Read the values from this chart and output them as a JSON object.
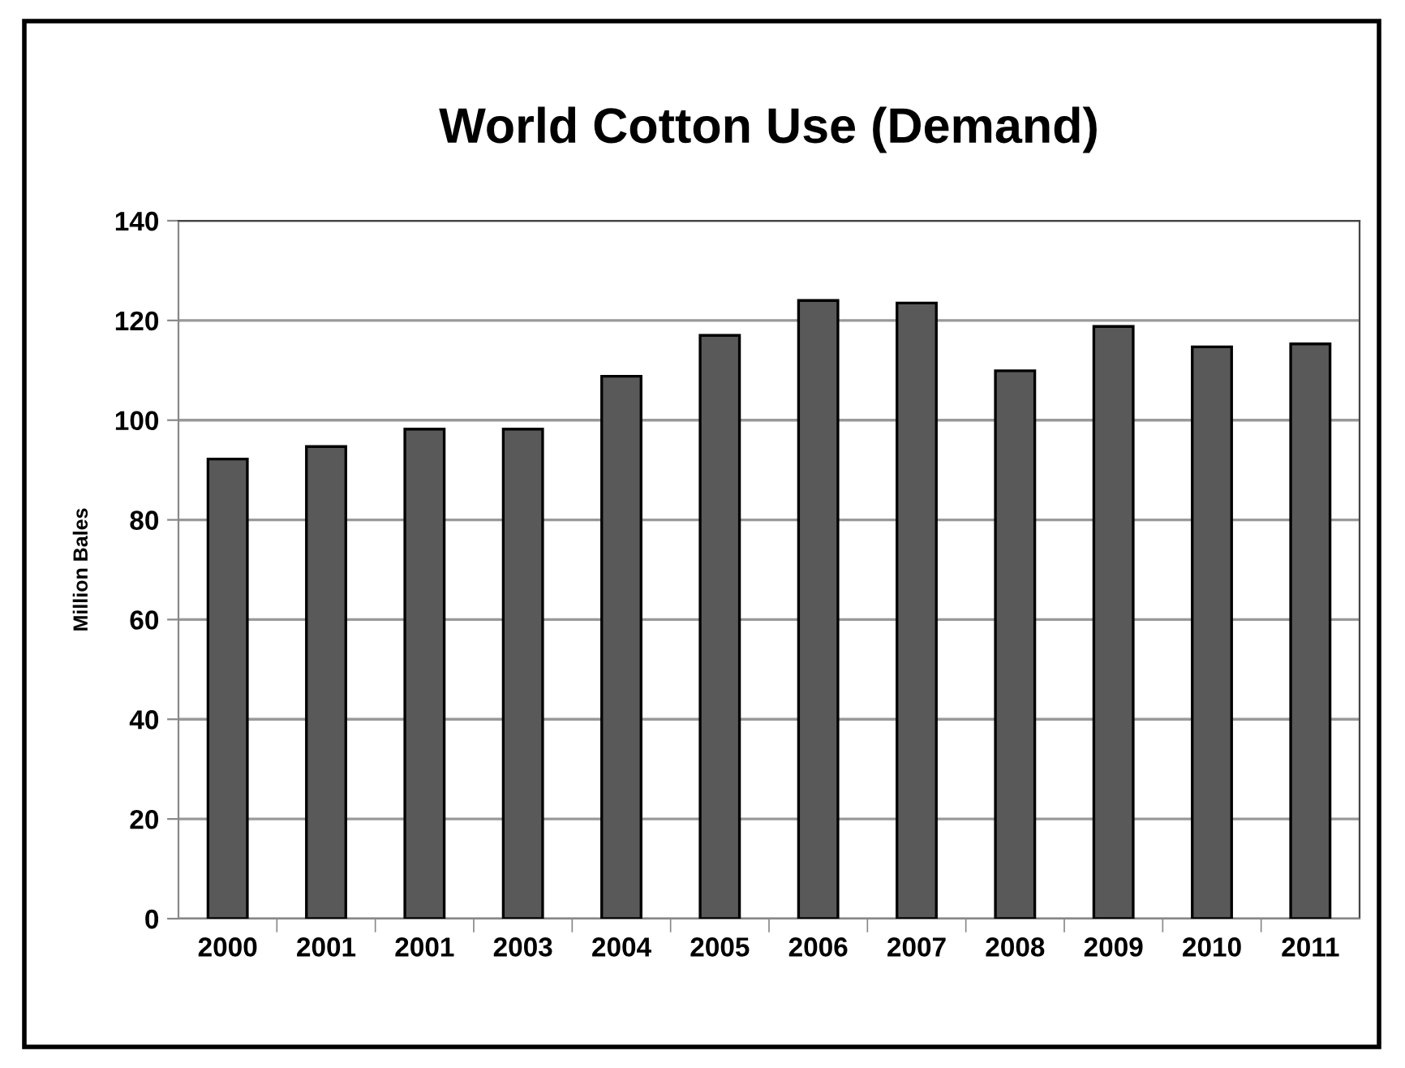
{
  "chart_data": {
    "type": "bar",
    "title": "World Cotton Use (Demand)",
    "ylabel": "Million Bales",
    "categories": [
      "2000",
      "2001",
      "2001",
      "2003",
      "2004",
      "2005",
      "2006",
      "2007",
      "2008",
      "2009",
      "2010",
      "2011"
    ],
    "values": [
      92.2,
      94.7,
      98.2,
      98.2,
      108.8,
      117.0,
      124.0,
      123.5,
      109.9,
      118.8,
      114.7,
      115.3
    ],
    "color": "#595959",
    "ylim": [
      0,
      140
    ],
    "yticks": [
      0,
      20,
      40,
      60,
      80,
      100,
      120,
      140
    ],
    "grid": "y",
    "legend": false
  }
}
